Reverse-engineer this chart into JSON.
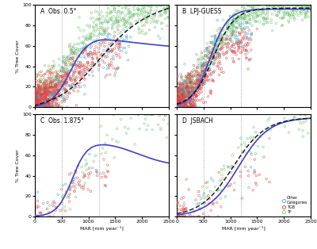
{
  "xlim": [
    0,
    2500
  ],
  "ylim": [
    0,
    100
  ],
  "xlabel": "MAR [mm year⁻¹]",
  "ylabel": "% Tree Cover",
  "vlines": [
    500,
    1200
  ],
  "colors": {
    "other": "#40b0d0",
    "tgb": "#e04040",
    "tf": "#70c070",
    "curve_solid": "#4040cc",
    "curve_dashed": "#111111"
  },
  "panel_labels": [
    "A  Obs. 0.5°",
    "B  LPJ-GUESS",
    "C  Obs. 1.875°",
    "D  JSBACH"
  ],
  "xticks": [
    0,
    500,
    1000,
    1500,
    2000,
    2500
  ],
  "yticks": [
    0,
    20,
    40,
    60,
    80,
    100
  ],
  "seed": 42
}
